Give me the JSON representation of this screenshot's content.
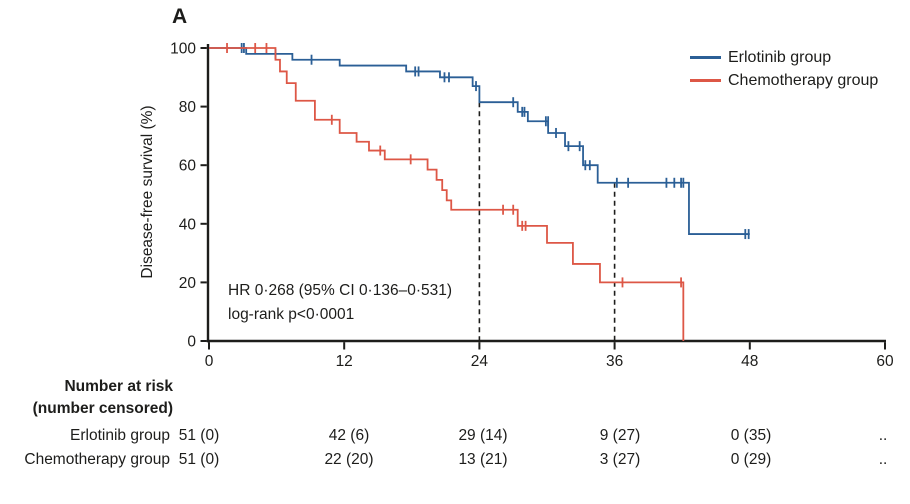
{
  "figure": {
    "panel": "A"
  },
  "annotation": {
    "line1": "HR 0·268 (95% CI 0·136–0·531)",
    "line2": "log-rank p<0·0001"
  },
  "risk_table": {
    "title_line1": "Number at risk",
    "title_line2": "(number censored)",
    "columns_months": [
      0,
      12,
      24,
      36,
      48,
      60
    ],
    "rows": [
      {
        "label": "Erlotinib group",
        "values": [
          "51 (0)",
          "42 (6)",
          "29 (14)",
          "9 (27)",
          "0 (35)",
          ".."
        ]
      },
      {
        "label": "Chemotherapy group",
        "values": [
          "51 (0)",
          "22 (20)",
          "13 (21)",
          "3 (27)",
          "0 (29)",
          ".."
        ]
      }
    ]
  },
  "chart_data": {
    "type": "line",
    "subtype": "kaplan-meier-step",
    "panel_title": "A",
    "xlabel": "",
    "ylabel": "Disease-free survival (%)",
    "xlim": [
      0,
      60
    ],
    "ylim": [
      0,
      100
    ],
    "x_ticks": [
      0,
      12,
      24,
      36,
      48,
      60
    ],
    "y_ticks": [
      0,
      20,
      40,
      60,
      80,
      100
    ],
    "grid": false,
    "legend_position": "top-right",
    "axis_color": "#1d1d1b",
    "dashed_markers": [
      {
        "x": 24,
        "y_top": 81.5
      },
      {
        "x": 36,
        "y_top": 54
      }
    ],
    "hr_text": "HR 0·268 (95% CI 0·136–0·531)",
    "logrank_text": "log-rank p<0·0001",
    "series": [
      {
        "name": "Erlotinib group",
        "color": "#2b5f96",
        "steps": [
          [
            0,
            100
          ],
          [
            3.3,
            98
          ],
          [
            7.4,
            96
          ],
          [
            11.6,
            94
          ],
          [
            17.5,
            92
          ],
          [
            20.5,
            90
          ],
          [
            23.4,
            87
          ],
          [
            24,
            81.5
          ],
          [
            27.4,
            78.2
          ],
          [
            28.3,
            75
          ],
          [
            30.1,
            71
          ],
          [
            31.6,
            66.5
          ],
          [
            33.2,
            60
          ],
          [
            34.5,
            54
          ],
          [
            42.6,
            36.5
          ]
        ],
        "end": 48,
        "censors": [
          [
            2.9,
            100
          ],
          [
            3.1,
            100
          ],
          [
            5.9,
            98
          ],
          [
            9.1,
            96
          ],
          [
            18.3,
            92
          ],
          [
            18.6,
            92
          ],
          [
            20.9,
            90
          ],
          [
            21.3,
            90
          ],
          [
            23.7,
            87
          ],
          [
            27,
            81.5
          ],
          [
            27.8,
            78.2
          ],
          [
            28,
            78.2
          ],
          [
            29.9,
            75
          ],
          [
            30.1,
            75
          ],
          [
            30.8,
            71
          ],
          [
            31.9,
            66.5
          ],
          [
            32.9,
            66.5
          ],
          [
            33.4,
            60
          ],
          [
            33.8,
            60
          ],
          [
            36.2,
            54
          ],
          [
            37.2,
            54
          ],
          [
            40.6,
            54
          ],
          [
            41.3,
            54
          ],
          [
            41.9,
            54
          ],
          [
            42.1,
            54
          ],
          [
            47.6,
            36.5
          ],
          [
            47.9,
            36.5
          ]
        ]
      },
      {
        "name": "Chemotherapy group",
        "color": "#dd5746",
        "steps": [
          [
            0,
            100
          ],
          [
            5.9,
            96
          ],
          [
            6.3,
            92
          ],
          [
            6.9,
            88
          ],
          [
            7.7,
            82
          ],
          [
            9.4,
            75.5
          ],
          [
            11.6,
            71
          ],
          [
            13.1,
            68
          ],
          [
            14.2,
            65
          ],
          [
            15.6,
            62
          ],
          [
            19.4,
            58.5
          ],
          [
            20.2,
            55
          ],
          [
            20.7,
            51.5
          ],
          [
            21.1,
            48
          ],
          [
            21.5,
            44.8
          ],
          [
            27.4,
            39.3
          ],
          [
            30,
            33.5
          ],
          [
            32.3,
            26.3
          ],
          [
            34.7,
            20
          ],
          [
            42.1,
            0
          ]
        ],
        "end": 42.1,
        "censors": [
          [
            1.6,
            100
          ],
          [
            4.1,
            100
          ],
          [
            5.1,
            100
          ],
          [
            10.9,
            75.5
          ],
          [
            15.2,
            65
          ],
          [
            17.9,
            62
          ],
          [
            26.1,
            44.8
          ],
          [
            27,
            44.8
          ],
          [
            27.8,
            39.3
          ],
          [
            28.1,
            39.3
          ],
          [
            36.7,
            20
          ],
          [
            41.9,
            20
          ]
        ]
      }
    ]
  }
}
